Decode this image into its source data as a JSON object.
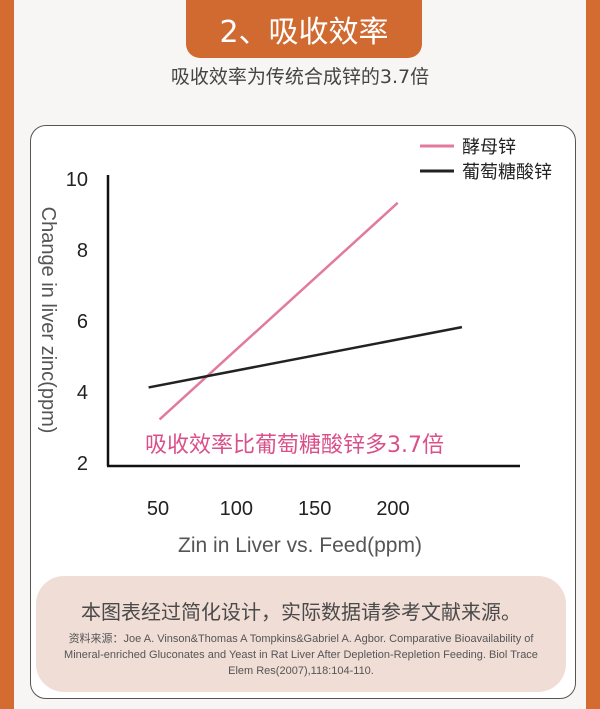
{
  "header": {
    "title": "2、吸收效率",
    "subtitle": "吸收效率为传统合成锌的3.7倍"
  },
  "chart_data": {
    "type": "line",
    "xlabel": "Zin in Liver vs. Feed(ppm)",
    "ylabel": "Change in liver zinc(ppm)",
    "xticks": [
      50,
      100,
      150,
      200
    ],
    "yticks": [
      2,
      4,
      6,
      8,
      10
    ],
    "xlim": [
      20,
      270
    ],
    "ylim": [
      2,
      10.5
    ],
    "grid": false,
    "legend_position": "top-right",
    "series": [
      {
        "name": "酵母锌",
        "color": "#e17a9d",
        "x": [
          51,
          203
        ],
        "y": [
          3.2,
          9.3
        ]
      },
      {
        "name": "葡萄糖酸锌",
        "color": "#222222",
        "x": [
          44,
          244
        ],
        "y": [
          4.1,
          5.8
        ]
      }
    ],
    "annotation": "吸收效率比葡萄糖酸锌多3.7倍",
    "annotation_color": "#d9508a"
  },
  "note": {
    "main": "本图表经过简化设计，实际数据请参考文献来源。",
    "source": "资料来源：Joe A. Vinson&Thomas A Tompkins&Gabriel A. Agbor. Comparative Bioavailability of Mineral-enriched Gluconates and Yeast in Rat Liver After Depletion-Repletion Feeding. Biol Trace Elem Res(2007),118:104-110."
  }
}
